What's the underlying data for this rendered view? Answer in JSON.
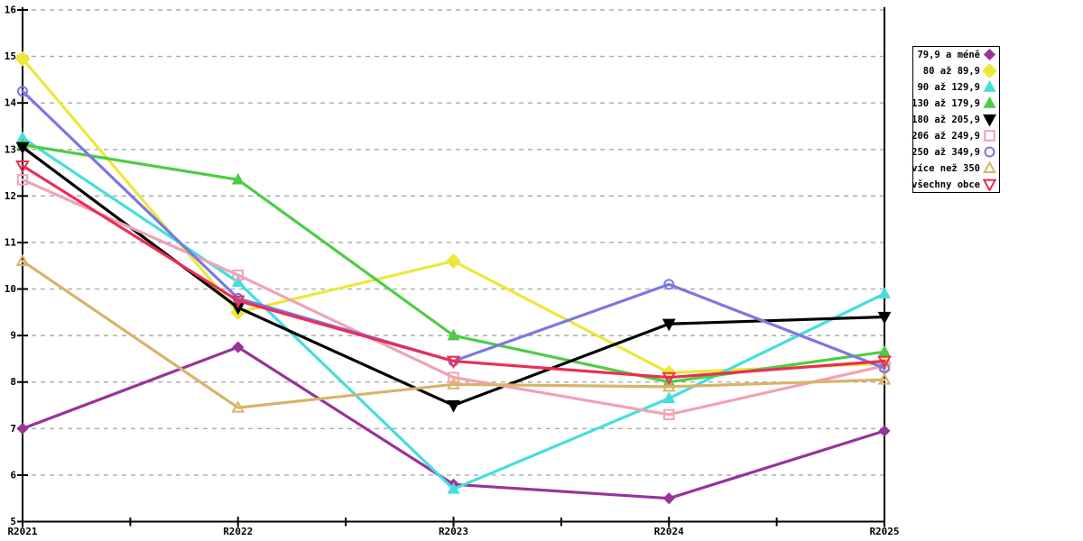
{
  "chart_data": {
    "type": "line",
    "title": "",
    "xlabel": "",
    "ylabel": "",
    "categories": [
      "R2021",
      "R2022",
      "R2023",
      "R2024",
      "R2025"
    ],
    "ylim": [
      5,
      16
    ],
    "ytick_step": 1,
    "y_tick_labels": [
      "5",
      "6",
      "7",
      "8",
      "9",
      "10",
      "11",
      "12",
      "13",
      "14",
      "15",
      "16"
    ],
    "grid": "horizontal-dashed",
    "legend_position": "top-right",
    "colors": {
      "axis": "#000000",
      "gridline": "#ababab",
      "background": "#ffffff"
    },
    "series": [
      {
        "name": "79,9 a méně",
        "color": "#993399",
        "marker": "diamond",
        "fill": "filled",
        "values": [
          7.0,
          8.75,
          5.8,
          5.5,
          6.95
        ]
      },
      {
        "name": "80 až 89,9",
        "color": "#ece83a",
        "marker": "diamond-large",
        "fill": "filled",
        "values": [
          14.95,
          9.5,
          10.6,
          8.2,
          8.4
        ]
      },
      {
        "name": "90 až 129,9",
        "color": "#44dede",
        "marker": "triangle-up",
        "fill": "filled",
        "values": [
          13.25,
          10.15,
          5.7,
          7.65,
          9.9
        ]
      },
      {
        "name": "130 až 179,9",
        "color": "#4ecc44",
        "marker": "triangle-up",
        "fill": "filled",
        "values": [
          13.1,
          12.35,
          9.0,
          8.0,
          8.65
        ]
      },
      {
        "name": "180 až 205,9",
        "color": "#000000",
        "marker": "triangle-down",
        "fill": "filled",
        "values": [
          13.05,
          9.6,
          7.5,
          9.25,
          9.4
        ]
      },
      {
        "name": "206 až 249,9",
        "color": "#f0a2b6",
        "marker": "square",
        "fill": "open",
        "values": [
          12.35,
          10.3,
          8.1,
          7.3,
          8.35
        ]
      },
      {
        "name": "250 až 349,9",
        "color": "#7c77e0",
        "marker": "circle",
        "fill": "open",
        "values": [
          14.25,
          9.8,
          8.45,
          10.1,
          8.3
        ]
      },
      {
        "name": "více než 350",
        "color": "#d9b36a",
        "marker": "triangle-up",
        "fill": "open",
        "values": [
          10.6,
          7.45,
          7.95,
          7.9,
          8.05
        ]
      },
      {
        "name": "všechny obce",
        "color": "#ea2e56",
        "marker": "triangle-down",
        "fill": "open",
        "values": [
          12.65,
          9.75,
          8.45,
          8.1,
          8.45
        ]
      }
    ]
  }
}
